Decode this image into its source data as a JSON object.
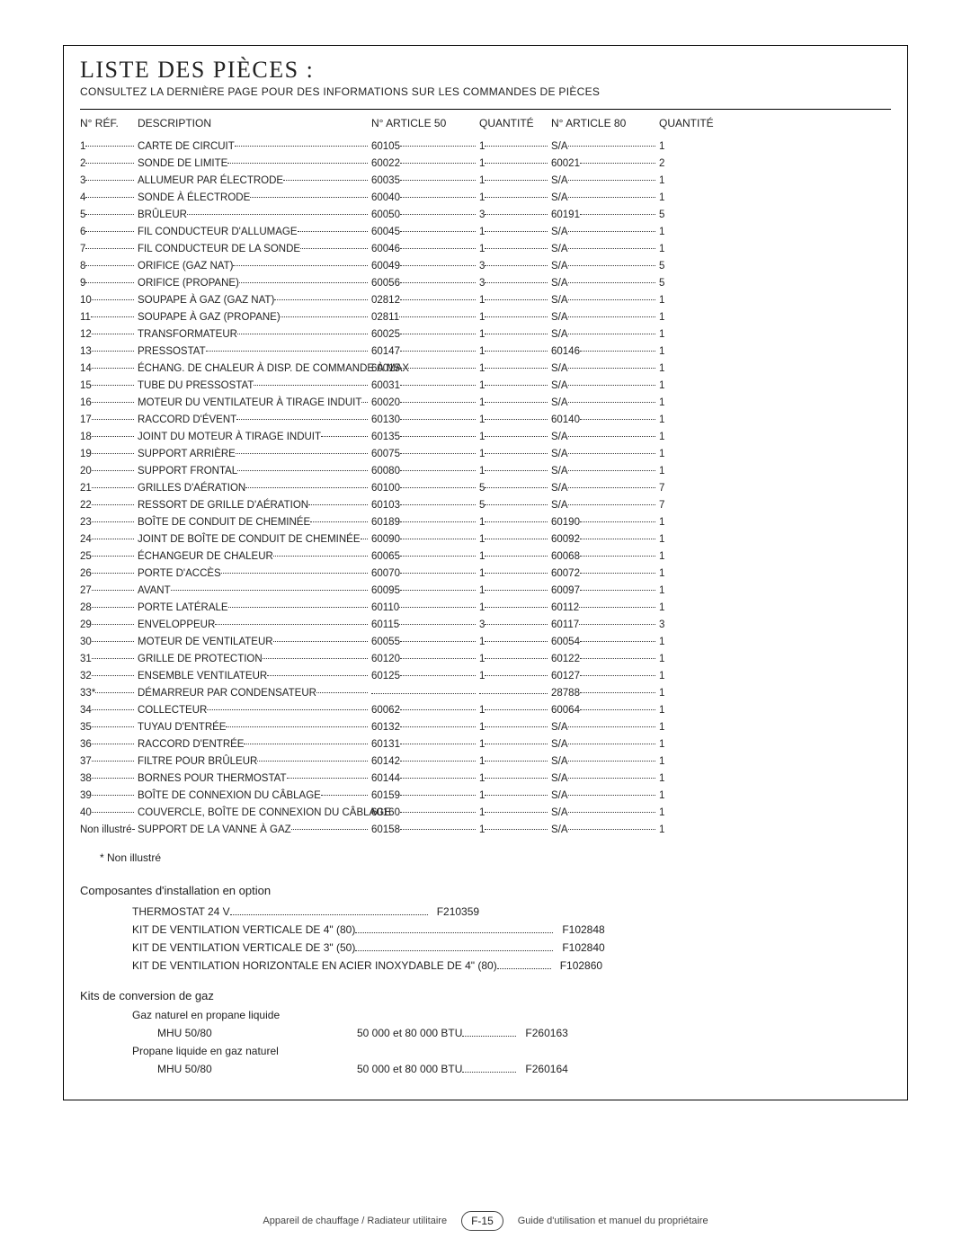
{
  "page": {
    "title": "LISTE DES PIÈCES :",
    "subtitle": "CONSULTEZ LA DERNIÈRE PAGE POUR DES INFORMATIONS SUR LES COMMANDES DE PIÈCES",
    "headers": {
      "ref": "N° RÉF.",
      "desc": "DESCRIPTION",
      "art50": "N° ARTICLE 50",
      "qty50": "QUANTITÉ",
      "art80": "N° ARTICLE 80",
      "qty80": "QUANTITÉ"
    },
    "note": "* Non illustré",
    "opt_section_title": "Composantes d'installation en option",
    "kits_section_title": "Kits de conversion de gaz",
    "kit_a_label": "Gaz naturel en propane liquide",
    "kit_b_label": "Propane liquide en gaz naturel",
    "footer_left": "Appareil de chauffage / Radiateur utilitaire",
    "footer_page": "F-15",
    "footer_right": "Guide d'utilisation et manuel du propriétaire"
  },
  "colors": {
    "text": "#222222",
    "border": "#000000",
    "dots": "#333333",
    "footer_text": "#444444",
    "bg": "#ffffff"
  },
  "typography": {
    "title_family": "Times New Roman",
    "title_size_pt": 20,
    "body_size_pt": 9,
    "header_size_pt": 9
  },
  "rows": [
    {
      "n": "1",
      "d": "CARTE DE CIRCUIT",
      "a50": "60105",
      "q50": "1",
      "a80": "S/A",
      "q80": "1"
    },
    {
      "n": "2",
      "d": "SONDE DE LIMITE",
      "a50": "60022",
      "q50": "1",
      "a80": "60021",
      "q80": "2"
    },
    {
      "n": "3",
      "d": "ALLUMEUR PAR ÉLECTRODE",
      "a50": "60035",
      "q50": "1",
      "a80": "S/A",
      "q80": "1"
    },
    {
      "n": "4",
      "d": "SONDE À ÉLECTRODE",
      "a50": "60040",
      "q50": "1",
      "a80": "S/A",
      "q80": "1"
    },
    {
      "n": "5",
      "d": "BRÛLEUR",
      "a50": "60050",
      "q50": "3",
      "a80": "60191",
      "q80": "5"
    },
    {
      "n": "6",
      "d": "FIL CONDUCTEUR D'ALLUMAGE",
      "a50": "60045",
      "q50": "1",
      "a80": "S/A",
      "q80": "1"
    },
    {
      "n": "7",
      "d": "FIL CONDUCTEUR DE LA SONDE",
      "a50": "60046",
      "q50": "1",
      "a80": "S/A",
      "q80": "1"
    },
    {
      "n": "8",
      "d": "ORIFICE (GAZ NAT)",
      "a50": "60049",
      "q50": "3",
      "a80": "S/A",
      "q80": "5"
    },
    {
      "n": "9",
      "d": "ORIFICE (PROPANE)",
      "a50": "60056",
      "q50": "3",
      "a80": "S/A",
      "q80": "5"
    },
    {
      "n": "10",
      "d": "SOUPAPE À GAZ (GAZ NAT)",
      "a50": "02812",
      "q50": "1",
      "a80": "S/A",
      "q80": "1"
    },
    {
      "n": "11",
      "d": "SOUPAPE À GAZ (PROPANE)",
      "a50": "02811",
      "q50": "1",
      "a80": "S/A",
      "q80": "1"
    },
    {
      "n": "12",
      "d": "TRANSFORMATEUR",
      "a50": "60025",
      "q50": "1",
      "a80": "S/A",
      "q80": "1"
    },
    {
      "n": "13",
      "d": "PRESSOSTAT",
      "a50": "60147",
      "q50": "1",
      "a80": "60146",
      "q80": "1"
    },
    {
      "n": "14",
      "d": "ÉCHANG. DE CHALEUR À DISP. DE COMMANDE À MAX",
      "a50": "60015",
      "q50": "1",
      "a80": "S/A",
      "q80": "1"
    },
    {
      "n": "15",
      "d": "TUBE DU PRESSOSTAT",
      "a50": "60031",
      "q50": "1",
      "a80": "S/A",
      "q80": "1"
    },
    {
      "n": "16",
      "d": "MOTEUR DU VENTILATEUR À TIRAGE INDUIT",
      "a50": "60020",
      "q50": "1",
      "a80": "S/A",
      "q80": "1"
    },
    {
      "n": "17",
      "d": "RACCORD D'ÉVENT",
      "a50": "60130",
      "q50": "1",
      "a80": "60140",
      "q80": "1"
    },
    {
      "n": "18",
      "d": "JOINT DU MOTEUR À TIRAGE INDUIT",
      "a50": "60135",
      "q50": "1",
      "a80": "S/A",
      "q80": "1"
    },
    {
      "n": "19",
      "d": "SUPPORT ARRIÈRE",
      "a50": "60075",
      "q50": "1",
      "a80": "S/A",
      "q80": "1"
    },
    {
      "n": "20",
      "d": "SUPPORT FRONTAL",
      "a50": "60080",
      "q50": "1",
      "a80": "S/A",
      "q80": "1"
    },
    {
      "n": "21",
      "d": "GRILLES D'AÉRATION",
      "a50": "60100",
      "q50": "5",
      "a80": "S/A",
      "q80": "7"
    },
    {
      "n": "22",
      "d": "RESSORT DE GRILLE D'AÉRATION",
      "a50": "60103",
      "q50": "5",
      "a80": "S/A",
      "q80": "7"
    },
    {
      "n": "23",
      "d": "BOÎTE DE CONDUIT DE CHEMINÉE",
      "a50": "60189",
      "q50": "1",
      "a80": "60190",
      "q80": "1"
    },
    {
      "n": "24",
      "d": "JOINT DE BOÎTE DE CONDUIT DE CHEMINÉE",
      "a50": "60090",
      "q50": "1",
      "a80": "60092",
      "q80": "1"
    },
    {
      "n": "25",
      "d": "ÉCHANGEUR DE CHALEUR",
      "a50": "60065",
      "q50": "1",
      "a80": "60068",
      "q80": "1"
    },
    {
      "n": "26",
      "d": "PORTE D'ACCÈS",
      "a50": "60070",
      "q50": "1",
      "a80": "60072",
      "q80": "1"
    },
    {
      "n": "27",
      "d": "AVANT",
      "a50": "60095",
      "q50": "1",
      "a80": "60097",
      "q80": "1"
    },
    {
      "n": "28",
      "d": "PORTE LATÉRALE",
      "a50": "60110",
      "q50": "1",
      "a80": "60112",
      "q80": "1"
    },
    {
      "n": "29",
      "d": "ENVELOPPEUR",
      "a50": "60115",
      "q50": "3",
      "a80": "60117",
      "q80": "3"
    },
    {
      "n": "30",
      "d": "MOTEUR DE VENTILATEUR",
      "a50": "60055",
      "q50": "1",
      "a80": "60054",
      "q80": "1"
    },
    {
      "n": "31",
      "d": "GRILLE DE PROTECTION",
      "a50": "60120",
      "q50": "1",
      "a80": "60122",
      "q80": "1"
    },
    {
      "n": "32",
      "d": "ENSEMBLE VENTILATEUR",
      "a50": "60125",
      "q50": "1",
      "a80": "60127",
      "q80": "1"
    },
    {
      "n": "33*",
      "d": "DÉMARREUR PAR CONDENSATEUR",
      "a50": "",
      "q50": "",
      "a80": "28788",
      "q80": "1"
    },
    {
      "n": "34",
      "d": "COLLECTEUR",
      "a50": "60062",
      "q50": "1",
      "a80": "60064",
      "q80": "1"
    },
    {
      "n": "35",
      "d": "TUYAU D'ENTRÉE",
      "a50": "60132",
      "q50": "1",
      "a80": "S/A",
      "q80": "1"
    },
    {
      "n": "36",
      "d": "RACCORD D'ENTRÉE",
      "a50": "60131",
      "q50": "1",
      "a80": "S/A",
      "q80": "1"
    },
    {
      "n": "37",
      "d": "FILTRE POUR BRÛLEUR",
      "a50": "60142",
      "q50": "1",
      "a80": "S/A",
      "q80": "1"
    },
    {
      "n": "38",
      "d": "BORNES POUR THERMOSTAT",
      "a50": "60144",
      "q50": "1",
      "a80": "S/A",
      "q80": "1"
    },
    {
      "n": "39",
      "d": "BOÎTE DE CONNEXION DU CÂBLAGE",
      "a50": "60159",
      "q50": "1",
      "a80": "S/A",
      "q80": "1"
    },
    {
      "n": "40",
      "d": "COUVERCLE, BOÎTE DE CONNEXION DU CÂBLAGE",
      "a50": "60160",
      "q50": "1",
      "a80": "S/A",
      "q80": "1"
    },
    {
      "n": "Non illustré",
      "d": "SUPPORT DE LA VANNE À GAZ",
      "a50": "60158",
      "q50": "1",
      "a80": "S/A",
      "q80": "1"
    }
  ],
  "options": [
    {
      "label": "THERMOSTAT 24 V",
      "code": "F210359"
    },
    {
      "label": "KIT DE VENTILATION VERTICALE DE 4\" (80)",
      "code": "F102848"
    },
    {
      "label": "KIT DE VENTILATION VERTICALE DE 3\" (50)",
      "code": "F102840"
    },
    {
      "label": "KIT DE VENTILATION HORIZONTALE EN ACIER INOXYDABLE DE 4\" (80)",
      "code": "F102860"
    }
  ],
  "kits": [
    {
      "model": "MHU 50/80",
      "btu": "50 000 et 80 000 BTU",
      "code": "F260163"
    },
    {
      "model": "MHU 50/80",
      "btu": "50 000 et 80 000 BTU",
      "code": "F260164"
    }
  ]
}
